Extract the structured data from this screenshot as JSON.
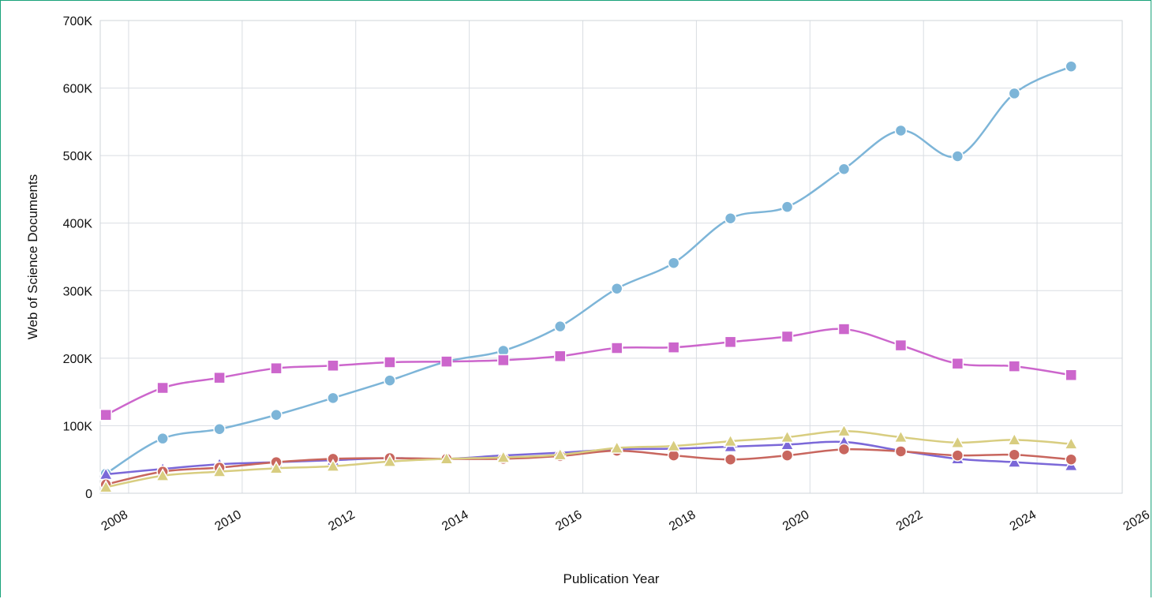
{
  "chart_data": {
    "type": "line",
    "xlabel": "Publication Year",
    "ylabel": "Web of Science Documents",
    "xlim": [
      2007.5,
      2025.5
    ],
    "ylim": [
      0,
      700000
    ],
    "x_ticks": [
      2008,
      2010,
      2012,
      2014,
      2016,
      2018,
      2020,
      2022,
      2024,
      2026
    ],
    "x_tick_labels": [
      "2008",
      "2010",
      "2012",
      "2014",
      "2016",
      "2018",
      "2020",
      "2022",
      "2024",
      "2026"
    ],
    "y_ticks": [
      0,
      100000,
      200000,
      300000,
      400000,
      500000,
      600000,
      700000
    ],
    "y_tick_labels": [
      "0",
      "100K",
      "200K",
      "300K",
      "400K",
      "500K",
      "600K",
      "700K"
    ],
    "x": [
      2007.6,
      2008.6,
      2009.6,
      2010.6,
      2011.6,
      2012.6,
      2013.6,
      2014.6,
      2015.6,
      2016.6,
      2017.6,
      2018.6,
      2019.6,
      2020.6,
      2021.6,
      2022.6,
      2023.6,
      2024.6
    ],
    "grid": true,
    "legend": "none",
    "series": [
      {
        "color": "#7db5d8",
        "marker": "circle",
        "values": [
          29000,
          81000,
          95000,
          116000,
          141000,
          167000,
          195000,
          211000,
          247000,
          303000,
          341000,
          407000,
          424000,
          480000,
          537000,
          499000,
          592000,
          632000
        ]
      },
      {
        "color": "#cc66cc",
        "marker": "square",
        "values": [
          116000,
          156000,
          171000,
          185000,
          189000,
          194000,
          195000,
          197000,
          203000,
          215000,
          216000,
          224000,
          232000,
          243000,
          219000,
          192000,
          188000,
          175000
        ]
      },
      {
        "color": "#7b68d8",
        "marker": "triangle",
        "values": [
          28000,
          36000,
          43000,
          46000,
          49000,
          52000,
          51000,
          56000,
          60000,
          65000,
          66000,
          69000,
          72000,
          76000,
          63000,
          51000,
          46000,
          41000
        ]
      },
      {
        "color": "#c8665e",
        "marker": "circle",
        "values": [
          13000,
          32000,
          38000,
          46000,
          51000,
          52000,
          51000,
          51000,
          55000,
          63000,
          56000,
          50000,
          56000,
          65000,
          62000,
          56000,
          57000,
          50000
        ]
      },
      {
        "color": "#d8cd80",
        "marker": "triangle",
        "values": [
          9000,
          26000,
          32000,
          37000,
          40000,
          47000,
          51000,
          53000,
          57000,
          67000,
          70000,
          77000,
          83000,
          92000,
          83000,
          75000,
          79000,
          73000
        ]
      }
    ]
  }
}
